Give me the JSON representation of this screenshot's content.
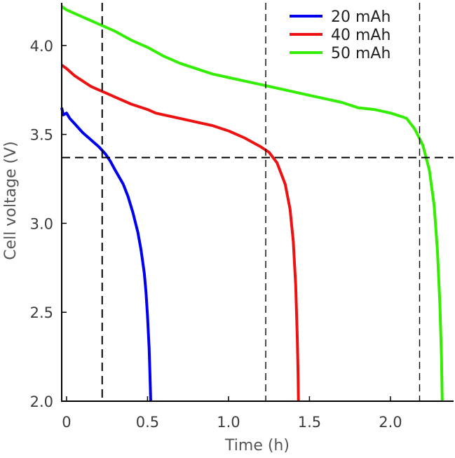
{
  "chart_data": {
    "type": "line",
    "title": "",
    "xlabel": "Time (h)",
    "ylabel": "Cell voltage (V)",
    "xlim": [
      -0.03,
      2.39
    ],
    "ylim": [
      2.0,
      4.24
    ],
    "x_ticks": [
      {
        "value": 0,
        "label": "0"
      },
      {
        "value": 0.5,
        "label": "0.5"
      },
      {
        "value": 1.0,
        "label": "1.0"
      },
      {
        "value": 1.5,
        "label": "1.5"
      },
      {
        "value": 2.0,
        "label": "2.0"
      }
    ],
    "y_ticks": [
      {
        "value": 2.0,
        "label": "2.0"
      },
      {
        "value": 2.5,
        "label": "2.5"
      },
      {
        "value": 3.0,
        "label": "3.0"
      },
      {
        "value": 3.5,
        "label": "3.5"
      },
      {
        "value": 4.0,
        "label": "4.0"
      }
    ],
    "grid": false,
    "legend_position": "top-right",
    "series": [
      {
        "name": "20 mAh",
        "color": "#0000ee",
        "points": [
          [
            -0.03,
            3.65
          ],
          [
            -0.02,
            3.61
          ],
          [
            0.0,
            3.62
          ],
          [
            0.02,
            3.59
          ],
          [
            0.05,
            3.56
          ],
          [
            0.1,
            3.51
          ],
          [
            0.15,
            3.47
          ],
          [
            0.2,
            3.43
          ],
          [
            0.24,
            3.39
          ],
          [
            0.27,
            3.35
          ],
          [
            0.3,
            3.3
          ],
          [
            0.35,
            3.22
          ],
          [
            0.38,
            3.15
          ],
          [
            0.41,
            3.06
          ],
          [
            0.44,
            2.95
          ],
          [
            0.46,
            2.85
          ],
          [
            0.48,
            2.72
          ],
          [
            0.49,
            2.62
          ],
          [
            0.5,
            2.48
          ],
          [
            0.51,
            2.3
          ],
          [
            0.515,
            2.15
          ],
          [
            0.52,
            2.0
          ]
        ]
      },
      {
        "name": "40 mAh",
        "color": "#ee1111",
        "points": [
          [
            -0.03,
            3.89
          ],
          [
            0.0,
            3.87
          ],
          [
            0.05,
            3.83
          ],
          [
            0.1,
            3.8
          ],
          [
            0.15,
            3.77
          ],
          [
            0.2,
            3.75
          ],
          [
            0.25,
            3.73
          ],
          [
            0.3,
            3.71
          ],
          [
            0.4,
            3.67
          ],
          [
            0.5,
            3.64
          ],
          [
            0.55,
            3.62
          ],
          [
            0.6,
            3.61
          ],
          [
            0.7,
            3.59
          ],
          [
            0.8,
            3.57
          ],
          [
            0.9,
            3.55
          ],
          [
            1.0,
            3.52
          ],
          [
            1.1,
            3.48
          ],
          [
            1.2,
            3.43
          ],
          [
            1.25,
            3.4
          ],
          [
            1.3,
            3.34
          ],
          [
            1.35,
            3.22
          ],
          [
            1.38,
            3.08
          ],
          [
            1.4,
            2.9
          ],
          [
            1.415,
            2.65
          ],
          [
            1.425,
            2.35
          ],
          [
            1.43,
            2.15
          ],
          [
            1.432,
            2.0
          ]
        ]
      },
      {
        "name": "50 mAh",
        "color": "#33ee00",
        "points": [
          [
            -0.03,
            4.22
          ],
          [
            0.0,
            4.2
          ],
          [
            0.1,
            4.16
          ],
          [
            0.2,
            4.12
          ],
          [
            0.3,
            4.08
          ],
          [
            0.4,
            4.03
          ],
          [
            0.5,
            3.99
          ],
          [
            0.6,
            3.94
          ],
          [
            0.7,
            3.9
          ],
          [
            0.8,
            3.87
          ],
          [
            0.9,
            3.84
          ],
          [
            1.0,
            3.82
          ],
          [
            1.1,
            3.8
          ],
          [
            1.2,
            3.78
          ],
          [
            1.3,
            3.76
          ],
          [
            1.4,
            3.74
          ],
          [
            1.5,
            3.72
          ],
          [
            1.6,
            3.7
          ],
          [
            1.7,
            3.68
          ],
          [
            1.8,
            3.65
          ],
          [
            1.9,
            3.64
          ],
          [
            2.0,
            3.62
          ],
          [
            2.07,
            3.6
          ],
          [
            2.1,
            3.59
          ],
          [
            2.15,
            3.53
          ],
          [
            2.2,
            3.44
          ],
          [
            2.24,
            3.3
          ],
          [
            2.27,
            3.1
          ],
          [
            2.29,
            2.85
          ],
          [
            2.305,
            2.55
          ],
          [
            2.315,
            2.25
          ],
          [
            2.32,
            2.0
          ]
        ]
      }
    ],
    "reference_lines": {
      "vertical_x": [
        0.22,
        1.23,
        2.18
      ],
      "horizontal_y": [
        3.37
      ],
      "style": "dashed"
    }
  }
}
